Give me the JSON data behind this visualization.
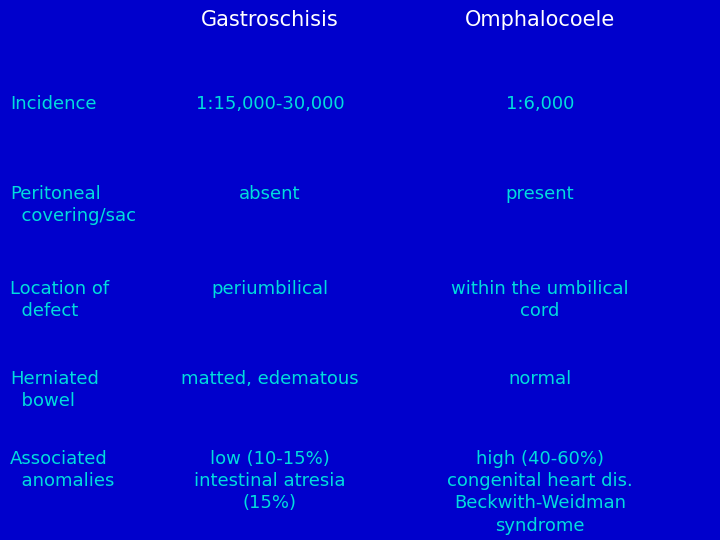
{
  "background_color": "#0000CC",
  "text_color_header": "#FFFFFF",
  "text_color_body": "#00DDDD",
  "header_fontsize": 15,
  "body_fontsize": 13,
  "col1_header": "Gastroschisis",
  "col2_header": "Omphalocoele",
  "rows": [
    {
      "label": "Incidence",
      "label_line2": "",
      "col1": "1:15,000-30,000",
      "col1_line2": "",
      "col2": "1:6,000",
      "col2_line2": ""
    },
    {
      "label": "Peritoneal",
      "label_line2": "  covering/sac",
      "col1": "absent",
      "col1_line2": "",
      "col2": "present",
      "col2_line2": ""
    },
    {
      "label": "Location of",
      "label_line2": "  defect",
      "col1": "periumbilical",
      "col1_line2": "",
      "col2": "within the umbilical",
      "col2_line2": "cord"
    },
    {
      "label": "Herniated",
      "label_line2": "  bowel",
      "col1": "matted, edematous",
      "col1_line2": "",
      "col2": "normal",
      "col2_line2": ""
    },
    {
      "label": "Associated",
      "label_line2": "  anomalies",
      "col1": "low (10-15%)",
      "col1_line2": "intestinal atresia\n(15%)",
      "col2": "high (40-60%)",
      "col2_line2": "congenital heart dis.\nBeckwith-Weidman\nsyndrome"
    }
  ]
}
